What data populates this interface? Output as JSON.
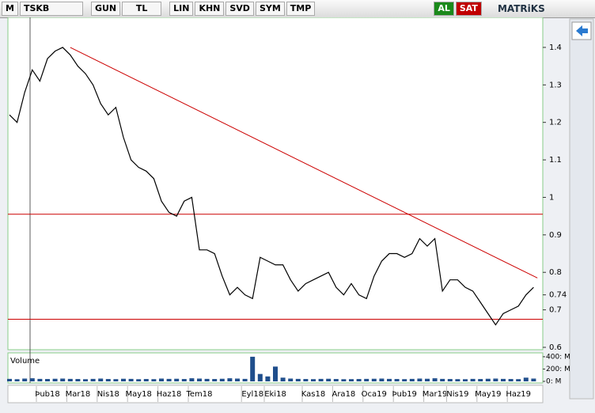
{
  "toolbar": {
    "logo": "M",
    "symbol": "TSKB",
    "buttons": [
      "GUN",
      "TL",
      "LIN",
      "KHN",
      "SVD",
      "SYM",
      "TMP"
    ],
    "buy": "AL",
    "sell": "SAT",
    "brand": "MATRiKS"
  },
  "chart_data": [
    {
      "type": "line",
      "categories": [
        null,
        null,
        null,
        null,
        null,
        "Þub18",
        null,
        null,
        null,
        "Mar18",
        null,
        null,
        null,
        "Nis18",
        null,
        null,
        null,
        "May18",
        null,
        null,
        null,
        "Haz18",
        null,
        null,
        null,
        "Tem18",
        null,
        null,
        null,
        null,
        null,
        null,
        "Eyl18",
        null,
        null,
        "Eki18",
        null,
        null,
        null,
        null,
        "Kas18",
        null,
        null,
        null,
        "Ara18",
        null,
        null,
        null,
        "Oca19",
        null,
        null,
        null,
        "Þub19",
        null,
        null,
        null,
        "Mar19",
        null,
        null,
        "Nis19",
        null,
        null,
        null,
        "May19",
        null,
        null,
        null,
        "Haz19",
        null,
        null
      ],
      "series": [
        {
          "name": "TSKB",
          "color": "#000000",
          "values": [
            1.22,
            1.2,
            1.28,
            1.34,
            1.31,
            1.37,
            1.39,
            1.4,
            1.38,
            1.35,
            1.33,
            1.3,
            1.25,
            1.22,
            1.24,
            1.16,
            1.1,
            1.08,
            1.07,
            1.05,
            0.99,
            0.96,
            0.95,
            0.99,
            1.0,
            0.86,
            0.86,
            0.85,
            0.79,
            0.74,
            0.76,
            0.74,
            0.73,
            0.84,
            0.83,
            0.82,
            0.82,
            0.78,
            0.75,
            0.77,
            0.78,
            0.79,
            0.8,
            0.76,
            0.74,
            0.77,
            0.74,
            0.73,
            0.79,
            0.83,
            0.85,
            0.85,
            0.84,
            0.85,
            0.89,
            0.87,
            0.89,
            0.75,
            0.78,
            0.78,
            0.76,
            0.75,
            0.72,
            0.69,
            0.66,
            0.69,
            0.7,
            0.71,
            0.74,
            0.76
          ]
        }
      ],
      "ylim": [
        0.6,
        1.48
      ],
      "yticks": [
        0.6,
        0.7,
        0.74,
        0.8,
        0.9,
        1,
        1.1,
        1.2,
        1.3,
        1.4
      ],
      "hlines": [
        0.955,
        0.675
      ],
      "trendline": {
        "x": [
          8,
          69.5
        ],
        "y": [
          1.4,
          0.785
        ]
      },
      "line_color": "#cc0000"
    },
    {
      "type": "bar",
      "title": "Volume",
      "color": "#1f4e8c",
      "values": [
        40,
        35,
        45,
        50,
        40,
        38,
        42,
        45,
        40,
        38,
        35,
        40,
        45,
        38,
        36,
        42,
        40,
        35,
        38,
        36,
        45,
        40,
        42,
        38,
        50,
        45,
        40,
        38,
        42,
        50,
        45,
        40,
        400,
        120,
        80,
        240,
        60,
        45,
        40,
        38,
        36,
        40,
        42,
        38,
        35,
        36,
        38,
        40,
        42,
        45,
        40,
        38,
        36,
        40,
        45,
        42,
        50,
        40,
        38,
        36,
        35,
        40,
        38,
        42,
        45,
        40,
        38,
        36,
        60,
        45
      ],
      "ylim": [
        0,
        450
      ],
      "yticks": [
        {
          "value": 0,
          "label": "0: M"
        },
        {
          "value": 200,
          "label": "200: M"
        },
        {
          "value": 400,
          "label": "400: M"
        }
      ]
    }
  ]
}
